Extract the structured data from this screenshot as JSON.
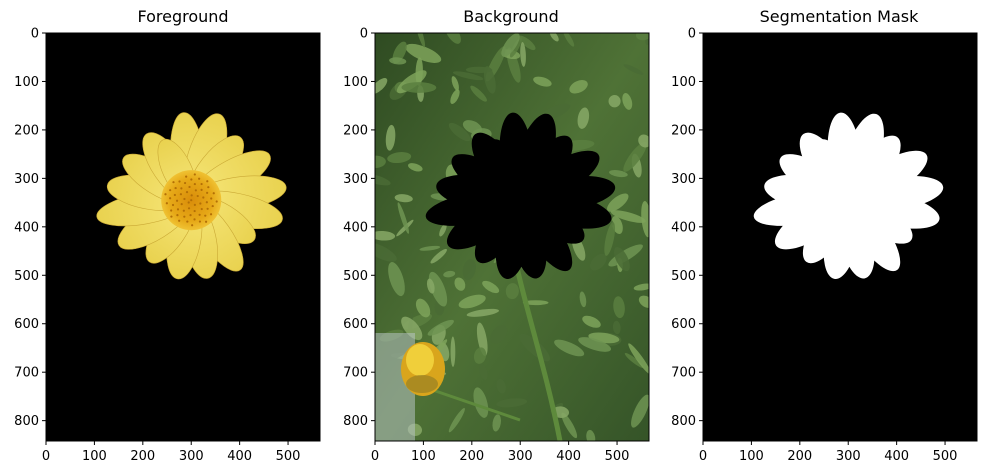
{
  "figure": {
    "panels": [
      {
        "title": "Foreground",
        "xticks": [
          "0",
          "100",
          "200",
          "300",
          "400",
          "500"
        ],
        "yticks": [
          "0",
          "100",
          "200",
          "300",
          "400",
          "500",
          "600",
          "700",
          "800"
        ]
      },
      {
        "title": "Background",
        "xticks": [
          "0",
          "100",
          "200",
          "300",
          "400",
          "500"
        ],
        "yticks": [
          "0",
          "100",
          "200",
          "300",
          "400",
          "500",
          "600",
          "700",
          "800"
        ]
      },
      {
        "title": "Segmentation Mask",
        "xticks": [
          "0",
          "100",
          "200",
          "300",
          "400",
          "500"
        ],
        "yticks": [
          "0",
          "100",
          "200",
          "300",
          "400",
          "500",
          "600",
          "700",
          "800"
        ]
      }
    ],
    "image_extent": {
      "width": 566,
      "height": 842
    },
    "colors": {
      "petal": "#f2e063",
      "petal_dark": "#d9c13a",
      "center": "#e4a615",
      "center_dark": "#c98a0c",
      "foliage": "#3e5f2c",
      "foliage_light": "#6f9452",
      "mask_fg": "#ffffff",
      "mask_bg": "#000000"
    }
  }
}
